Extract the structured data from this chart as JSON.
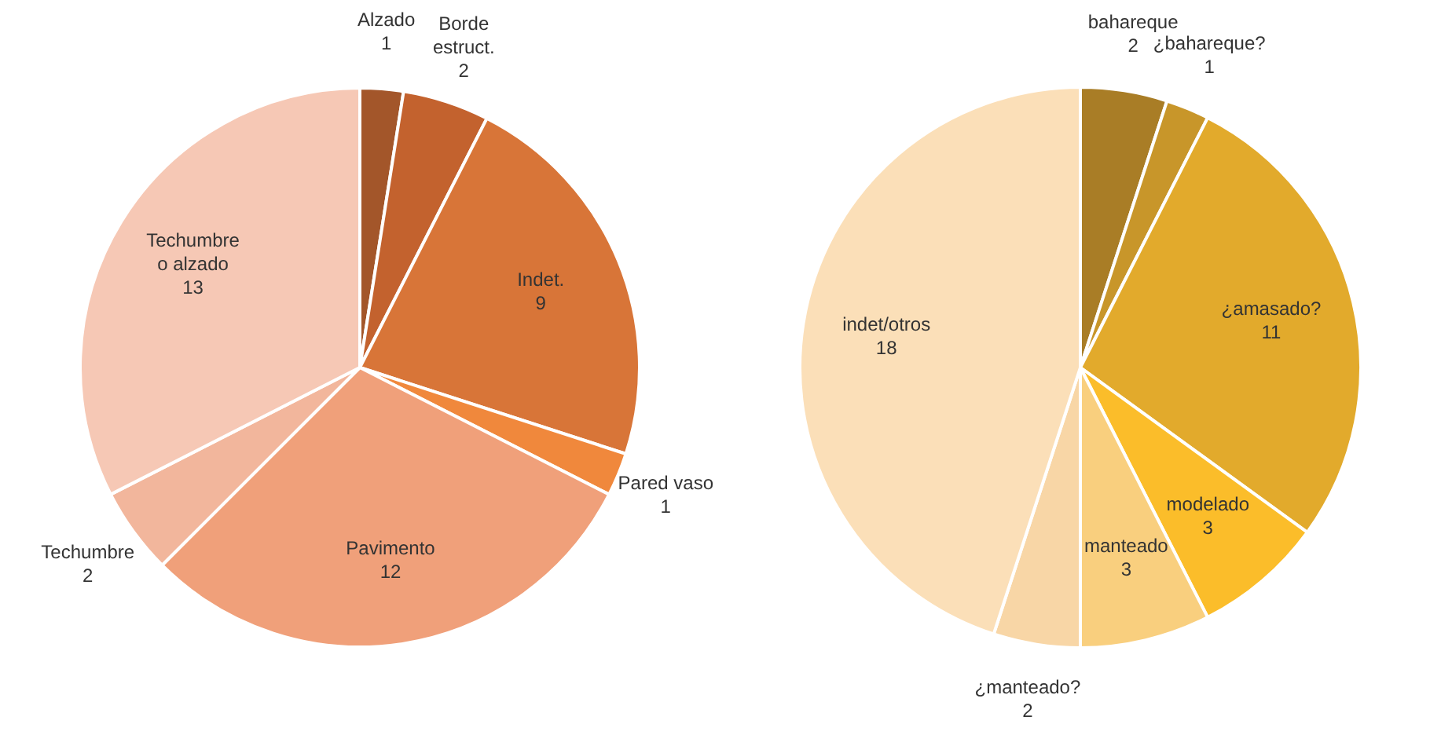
{
  "chart_data": [
    {
      "type": "pie",
      "categories": [
        "Alzado",
        "Borde estruct.",
        "Indet.",
        "Pared vaso",
        "Pavimento",
        "Techumbre",
        "Techumbre o alzado"
      ],
      "values": [
        1,
        2,
        9,
        1,
        12,
        2,
        13
      ],
      "colors": [
        "#a3562a",
        "#c3622e",
        "#d87538",
        "#f0883c",
        "#f0a07a",
        "#f2b69c",
        "#f6c8b5"
      ],
      "data_labels": true,
      "legend": false
    },
    {
      "type": "pie",
      "categories": [
        "bahareque",
        "¿bahareque?",
        "¿amasado?",
        "modelado",
        "manteado",
        "¿manteado?",
        "indet/otros"
      ],
      "values": [
        2,
        1,
        11,
        3,
        3,
        2,
        18
      ],
      "colors": [
        "#a97d26",
        "#c8962a",
        "#e2aa2c",
        "#fbbd2a",
        "#f9cf7e",
        "#f8d6a6",
        "#fbdfb8"
      ],
      "data_labels": true,
      "legend": false
    }
  ]
}
